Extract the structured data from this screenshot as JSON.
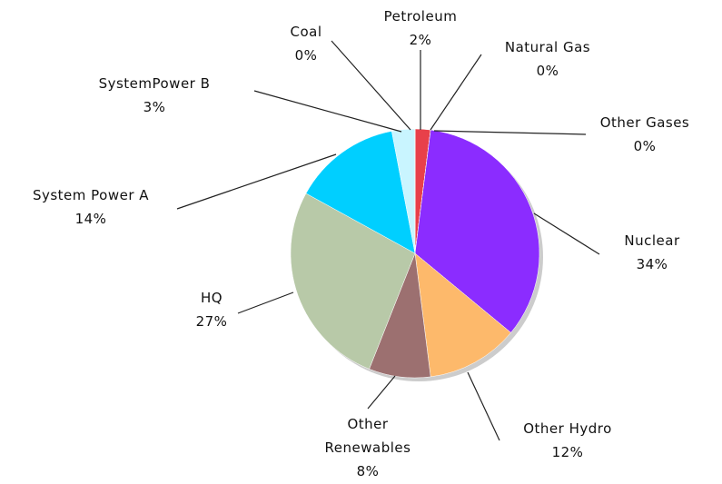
{
  "chart_data": {
    "type": "pie",
    "categories": [
      "Petroleum",
      "Natural Gas",
      "Other Gases",
      "Nuclear",
      "Other Hydro",
      "Other Renewables",
      "HQ",
      "System Power A",
      "SystemPower B",
      "Coal"
    ],
    "values": [
      2,
      0,
      0,
      34,
      12,
      8,
      27,
      14,
      3,
      0
    ],
    "value_labels": [
      "2%",
      "0%",
      "0%",
      "34%",
      "12%",
      "8%",
      "27%",
      "14%",
      "3%",
      "0%"
    ],
    "colors": [
      "#e8404a",
      "#f5a623",
      "#f2e06b",
      "#8b2cff",
      "#fdb96b",
      "#9c7070",
      "#b8c9a8",
      "#00cfff",
      "#c9f5ff",
      "#999999"
    ]
  }
}
